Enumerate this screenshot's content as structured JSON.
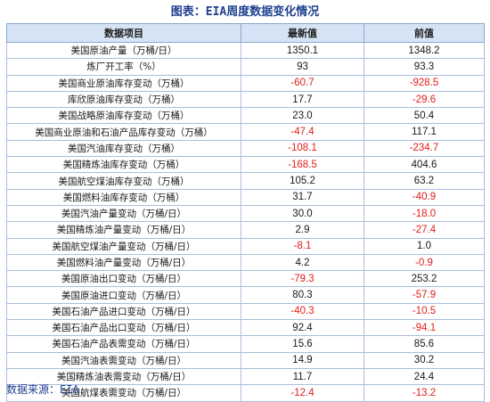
{
  "title": "图表：EIA周度数据变化情况",
  "table": {
    "headers": [
      "数据项目",
      "最新值",
      "前值"
    ],
    "rows": [
      {
        "item": "美国原油产量（万桶/日）",
        "latest": "1350.1",
        "prev": "1348.2"
      },
      {
        "item": "炼厂开工率（%）",
        "latest": "93",
        "prev": "93.3"
      },
      {
        "item": "美国商业原油库存变动（万桶）",
        "latest": "-60.7",
        "prev": "-928.5"
      },
      {
        "item": "库欣原油库存变动（万桶）",
        "latest": "17.7",
        "prev": "-29.6"
      },
      {
        "item": "美国战略原油库存变动（万桶）",
        "latest": "23.0",
        "prev": "50.4"
      },
      {
        "item": "美国商业原油和石油产品库存变动（万桶）",
        "latest": "-47.4",
        "prev": "117.1"
      },
      {
        "item": "美国汽油库存变动（万桶）",
        "latest": "-108.1",
        "prev": "-234.7"
      },
      {
        "item": "美国精炼油库存变动（万桶）",
        "latest": "-168.5",
        "prev": "404.6"
      },
      {
        "item": "美国航空煤油库存变动（万桶）",
        "latest": "105.2",
        "prev": "63.2"
      },
      {
        "item": "美国燃料油库存变动（万桶）",
        "latest": "31.7",
        "prev": "-40.9"
      },
      {
        "item": "美国汽油产量变动（万桶/日）",
        "latest": "30.0",
        "prev": "-18.0"
      },
      {
        "item": "美国精炼油产量变动（万桶/日）",
        "latest": "2.9",
        "prev": "-27.4"
      },
      {
        "item": "美国航空煤油产量变动（万桶/日）",
        "latest": "-8.1",
        "prev": "1.0"
      },
      {
        "item": "美国燃料油产量变动（万桶/日）",
        "latest": "4.2",
        "prev": "-0.9"
      },
      {
        "item": "美国原油出口变动（万桶/日）",
        "latest": "-79.3",
        "prev": "253.2"
      },
      {
        "item": "美国原油进口变动（万桶/日）",
        "latest": "80.3",
        "prev": "-57.9"
      },
      {
        "item": "美国石油产品进口变动（万桶/日）",
        "latest": "-40.3",
        "prev": "-10.5"
      },
      {
        "item": "美国石油产品出口变动（万桶/日）",
        "latest": "92.4",
        "prev": "-94.1"
      },
      {
        "item": "美国石油产品表需变动（万桶/日）",
        "latest": "15.6",
        "prev": "85.6"
      },
      {
        "item": "美国汽油表需变动（万桶/日）",
        "latest": "14.9",
        "prev": "30.2"
      },
      {
        "item": "美国精炼油表需变动（万桶/日）",
        "latest": "11.7",
        "prev": "24.4"
      },
      {
        "item": "美国航煤表需变动（万桶/日）",
        "latest": "-12.4",
        "prev": "-13.2"
      }
    ]
  },
  "source": "数据来源：EIA",
  "colors": {
    "negative": "#e0201b",
    "header_bg": "#d6e3f4",
    "title": "#1f3f8f"
  }
}
